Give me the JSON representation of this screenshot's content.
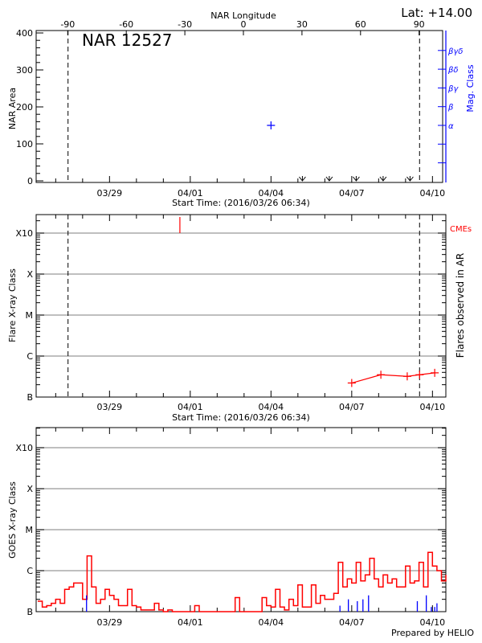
{
  "colors": {
    "flare": "#ff0000",
    "mag": "#0000ff",
    "axis": "#000000",
    "grid": "#999999",
    "goes_long": "#ff0000",
    "goes_short": "#0000ff"
  },
  "header": {
    "lat_label": "Lat: +14.00",
    "region_title": "NAR 12527",
    "prepared_by": "Prepared by HELIO"
  },
  "chart_data": [
    {
      "type": "scatter",
      "panel": "nar",
      "title": "NAR 12527",
      "ylabel": "NAR Area",
      "xlabel": "Start Time: (2016/03/26 06:34)",
      "top_axis_label": "NAR Longitude",
      "top_ticks": [
        "-90",
        "-60",
        "-30",
        "0",
        "30",
        "60",
        "90"
      ],
      "x_ticks": [
        "03/29",
        "04/01",
        "04/04",
        "04/07",
        "04/10"
      ],
      "ylim": [
        0,
        400
      ],
      "y_ticks": [
        "0",
        "100",
        "200",
        "300",
        "400"
      ],
      "right_axis_label": "Mag. Class",
      "right_ticks": [
        "α",
        "β",
        "βγ",
        "βδ",
        "βγδ"
      ],
      "limb_lines": [
        "2016-03-27T11:00",
        "2016-04-09T12:30"
      ],
      "area_points": [
        {
          "time": "2016-04-04T00:00",
          "area": 150,
          "mag_class": "α"
        }
      ],
      "longitude_markers": [
        "2016-04-05T04:00",
        "2016-04-06T04:00",
        "2016-04-07T04:00",
        "2016-04-08T04:00",
        "2016-04-09T04:00"
      ]
    },
    {
      "type": "line",
      "panel": "flares",
      "ylabel": "Flare X-ray Class",
      "right_axis_label": "Flares observed in AR",
      "cme_label": "CMEs",
      "xlabel": "Start Time: (2016/03/26 06:34)",
      "x_ticks": [
        "03/29",
        "04/01",
        "04/04",
        "04/07",
        "04/10"
      ],
      "y_ticks": [
        "B",
        "C",
        "M",
        "X",
        "X10"
      ],
      "grid": true,
      "limb_lines": [
        "2016-03-27T11:00",
        "2016-04-09T12:30"
      ],
      "cmes": [
        "2016-03-31T14:45"
      ],
      "flares": [
        {
          "time": "2016-04-07T00:00",
          "class": "B2.2"
        },
        {
          "time": "2016-04-08T02:00",
          "class": "B3.5"
        },
        {
          "time": "2016-04-09T01:30",
          "class": "B3.2"
        },
        {
          "time": "2016-04-09T12:30",
          "class": "B3.5"
        },
        {
          "time": "2016-04-10T02:00",
          "class": "B3.9"
        }
      ]
    },
    {
      "type": "line",
      "panel": "goes",
      "ylabel": "GOES X-ray Class",
      "x_ticks": [
        "03/29",
        "04/01",
        "04/04",
        "04/07",
        "04/10"
      ],
      "y_ticks": [
        "B",
        "C",
        "M",
        "X",
        "X10"
      ],
      "grid": true,
      "long_channel": {
        "start": "2016-03-26T08:00",
        "step_hours": 4,
        "classes": [
          "B1.8",
          "B1.3",
          "B1.4",
          "B1.6",
          "B2.0",
          "B1.6",
          "B3.5",
          "B4.0",
          "B5.0",
          "B5.0",
          "B2.0",
          "C2.3",
          "B4.0",
          "B1.6",
          "B2.0",
          "B3.5",
          "B2.5",
          "B2.0",
          "B1.4",
          "B1.4",
          "B3.5",
          "B1.4",
          "B1.3",
          "B1.1",
          "B1.1",
          "B1.1",
          "B1.6",
          "B1.1",
          "B1.0",
          "B1.1",
          "B1.0",
          "B1.0",
          "B1.0",
          "B1.0",
          "B1.0",
          "B1.4",
          "B1.0",
          "B1.0",
          "B1.0",
          "B1.0",
          "B1.0",
          "B1.0",
          "B1.0",
          "B1.0",
          "B2.2",
          "B1.0",
          "B1.0",
          "B1.0",
          "B1.0",
          "B1.0",
          "B2.2",
          "B1.4",
          "B1.3",
          "B3.5",
          "B1.3",
          "B1.1",
          "B2.0",
          "B1.4",
          "B4.5",
          "B1.3",
          "B1.3",
          "B4.5",
          "B1.6",
          "B2.5",
          "B2.0",
          "B2.0",
          "B2.8",
          "C1.6",
          "B4.0",
          "B6.3",
          "B5.0",
          "C1.6",
          "B5.6",
          "B7.9",
          "C2.0",
          "B6.3",
          "B4.0",
          "B7.9",
          "B5.0",
          "B6.3",
          "B4.0",
          "B4.0",
          "C1.3",
          "B5.0",
          "B5.6",
          "C1.6",
          "B4.0",
          "C2.8",
          "C1.3",
          "C1.0",
          "B5.6",
          "B7.9"
        ]
      },
      "short_channel": [
        {
          "time": "2016-03-28T03:30",
          "class": "B2.5"
        },
        {
          "time": "2016-04-06T13:30",
          "class": "B1.4"
        },
        {
          "time": "2016-04-06T21:00",
          "class": "B2.0"
        },
        {
          "time": "2016-04-07T05:00",
          "class": "B1.8"
        },
        {
          "time": "2016-04-07T10:00",
          "class": "B2.0"
        },
        {
          "time": "2016-04-07T15:00",
          "class": "B2.5"
        },
        {
          "time": "2016-04-09T10:30",
          "class": "B1.8"
        },
        {
          "time": "2016-04-09T18:30",
          "class": "B2.5"
        },
        {
          "time": "2016-04-09T23:00",
          "class": "B1.3"
        },
        {
          "time": "2016-04-10T02:00",
          "class": "B1.3"
        },
        {
          "time": "2016-04-10T04:00",
          "class": "B1.6"
        }
      ]
    }
  ]
}
